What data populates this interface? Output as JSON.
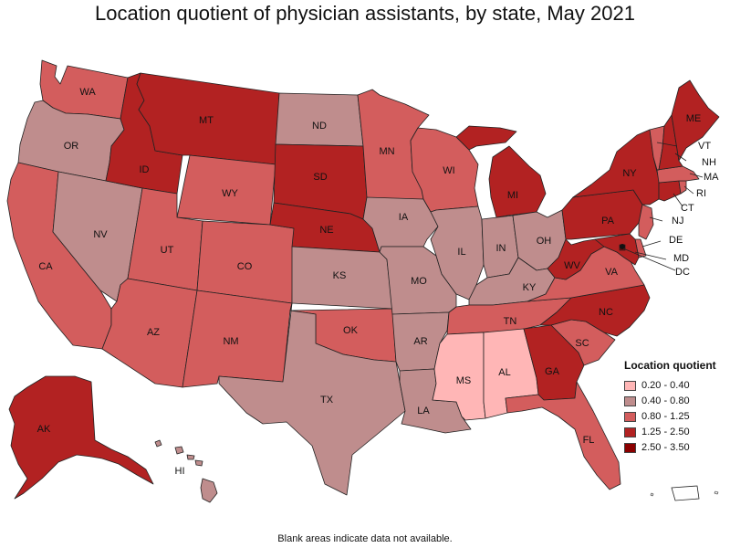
{
  "title": "Location quotient of physician assistants, by state, May 2021",
  "footnote": "Blank areas indicate data not available.",
  "legend": {
    "title": "Location quotient",
    "items": [
      {
        "label": "0.20 - 0.40",
        "color": "#ffb6b6"
      },
      {
        "label": "0.40 - 0.80",
        "color": "#bf8d8d"
      },
      {
        "label": "0.80 - 1.25",
        "color": "#d35d5d"
      },
      {
        "label": "1.25 - 2.50",
        "color": "#b22222"
      },
      {
        "label": "2.50 - 3.50",
        "color": "#8b0000"
      }
    ]
  },
  "states": {
    "WA": {
      "label": "WA",
      "class": 2
    },
    "OR": {
      "label": "OR",
      "class": 1
    },
    "CA": {
      "label": "CA",
      "class": 2
    },
    "NV": {
      "label": "NV",
      "class": 1
    },
    "ID": {
      "label": "ID",
      "class": 3
    },
    "MT": {
      "label": "MT",
      "class": 3
    },
    "WY": {
      "label": "WY",
      "class": 2
    },
    "UT": {
      "label": "UT",
      "class": 2
    },
    "AZ": {
      "label": "AZ",
      "class": 2
    },
    "CO": {
      "label": "CO",
      "class": 2
    },
    "NM": {
      "label": "NM",
      "class": 2
    },
    "ND": {
      "label": "ND",
      "class": 1
    },
    "SD": {
      "label": "SD",
      "class": 3
    },
    "NE": {
      "label": "NE",
      "class": 3
    },
    "KS": {
      "label": "KS",
      "class": 1
    },
    "OK": {
      "label": "OK",
      "class": 2
    },
    "TX": {
      "label": "TX",
      "class": 1
    },
    "MN": {
      "label": "MN",
      "class": 2
    },
    "IA": {
      "label": "IA",
      "class": 1
    },
    "MO": {
      "label": "MO",
      "class": 1
    },
    "AR": {
      "label": "AR",
      "class": 1
    },
    "LA": {
      "label": "LA",
      "class": 1
    },
    "WI": {
      "label": "WI",
      "class": 2
    },
    "IL": {
      "label": "IL",
      "class": 1
    },
    "MI": {
      "label": "MI",
      "class": 3
    },
    "IN": {
      "label": "IN",
      "class": 1
    },
    "OH": {
      "label": "OH",
      "class": 1
    },
    "KY": {
      "label": "KY",
      "class": 1
    },
    "TN": {
      "label": "TN",
      "class": 2
    },
    "MS": {
      "label": "MS",
      "class": 0
    },
    "AL": {
      "label": "AL",
      "class": 0
    },
    "GA": {
      "label": "GA",
      "class": 3
    },
    "FL": {
      "label": "FL",
      "class": 2
    },
    "SC": {
      "label": "SC",
      "class": 2
    },
    "NC": {
      "label": "NC",
      "class": 3
    },
    "VA": {
      "label": "VA",
      "class": 2
    },
    "WV": {
      "label": "WV",
      "class": 3
    },
    "PA": {
      "label": "PA",
      "class": 3
    },
    "NY": {
      "label": "NY",
      "class": 3
    },
    "ME": {
      "label": "ME",
      "class": 3
    },
    "VT": {
      "label": "VT",
      "class": 2
    },
    "NH": {
      "label": "NH",
      "class": 3
    },
    "MA": {
      "label": "MA",
      "class": 2
    },
    "RI": {
      "label": "RI",
      "class": 2
    },
    "CT": {
      "label": "CT",
      "class": 3
    },
    "NJ": {
      "label": "NJ",
      "class": 2
    },
    "DE": {
      "label": "DE",
      "class": 2
    },
    "MD": {
      "label": "MD",
      "class": 3
    },
    "DC": {
      "label": "DC",
      "class": 4
    },
    "AK": {
      "label": "AK",
      "class": 3
    },
    "HI": {
      "label": "HI",
      "class": 1
    },
    "PR": {
      "label": "",
      "class": -1
    }
  }
}
